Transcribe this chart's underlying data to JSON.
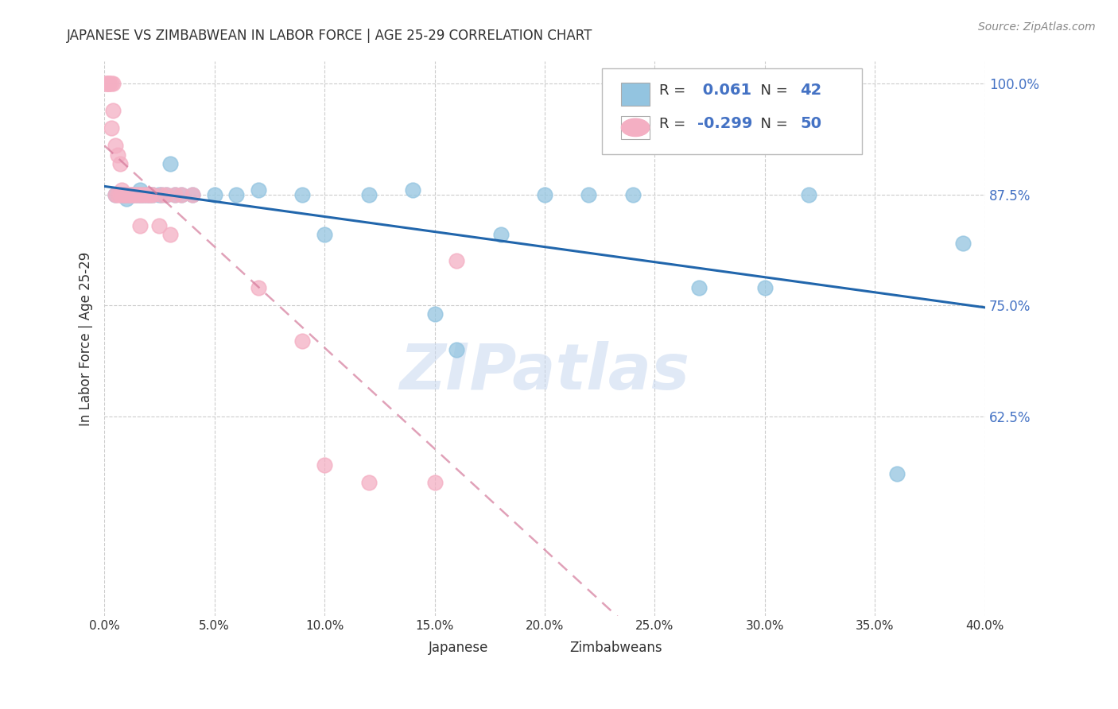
{
  "title": "JAPANESE VS ZIMBABWEAN IN LABOR FORCE | AGE 25-29 CORRELATION CHART",
  "source": "Source: ZipAtlas.com",
  "ylabel": "In Labor Force | Age 25-29",
  "xlim": [
    0.0,
    0.4
  ],
  "ylim": [
    0.4,
    1.025
  ],
  "yticks": [
    1.0,
    0.875,
    0.75,
    0.625
  ],
  "xticks": [
    0.0,
    0.05,
    0.1,
    0.15,
    0.2,
    0.25,
    0.3,
    0.35,
    0.4
  ],
  "japanese_x": [
    0.005,
    0.008,
    0.009,
    0.01,
    0.01,
    0.012,
    0.013,
    0.014,
    0.015,
    0.016,
    0.016,
    0.017,
    0.018,
    0.019,
    0.02,
    0.021,
    0.022,
    0.025,
    0.026,
    0.028,
    0.03,
    0.032,
    0.035,
    0.04,
    0.05,
    0.06,
    0.07,
    0.09,
    0.1,
    0.12,
    0.14,
    0.15,
    0.16,
    0.18,
    0.2,
    0.22,
    0.24,
    0.27,
    0.3,
    0.32,
    0.36,
    0.39
  ],
  "japanese_y": [
    0.875,
    0.875,
    0.875,
    0.87,
    0.875,
    0.875,
    0.875,
    0.875,
    0.875,
    0.875,
    0.88,
    0.875,
    0.875,
    0.875,
    0.875,
    0.875,
    0.875,
    0.875,
    0.875,
    0.875,
    0.91,
    0.875,
    0.875,
    0.875,
    0.875,
    0.875,
    0.88,
    0.875,
    0.83,
    0.875,
    0.88,
    0.74,
    0.7,
    0.83,
    0.875,
    0.875,
    0.875,
    0.77,
    0.77,
    0.875,
    0.56,
    0.82
  ],
  "zimbabwean_x": [
    0.001,
    0.001,
    0.001,
    0.002,
    0.002,
    0.002,
    0.003,
    0.003,
    0.004,
    0.004,
    0.005,
    0.005,
    0.006,
    0.006,
    0.007,
    0.007,
    0.008,
    0.008,
    0.009,
    0.009,
    0.01,
    0.01,
    0.011,
    0.012,
    0.012,
    0.013,
    0.013,
    0.014,
    0.015,
    0.016,
    0.016,
    0.017,
    0.018,
    0.019,
    0.02,
    0.021,
    0.022,
    0.025,
    0.026,
    0.028,
    0.03,
    0.032,
    0.035,
    0.04,
    0.07,
    0.09,
    0.1,
    0.12,
    0.15,
    0.16
  ],
  "zimbabwean_y": [
    1.0,
    1.0,
    1.0,
    1.0,
    1.0,
    1.0,
    1.0,
    0.95,
    1.0,
    0.97,
    0.875,
    0.93,
    0.875,
    0.92,
    0.875,
    0.91,
    0.875,
    0.88,
    0.875,
    0.875,
    0.875,
    0.875,
    0.875,
    0.875,
    0.875,
    0.875,
    0.875,
    0.875,
    0.875,
    0.875,
    0.84,
    0.875,
    0.875,
    0.875,
    0.875,
    0.875,
    0.875,
    0.84,
    0.875,
    0.875,
    0.83,
    0.875,
    0.875,
    0.875,
    0.77,
    0.71,
    0.57,
    0.55,
    0.55,
    0.8
  ],
  "japanese_R": 0.061,
  "japanese_N": 42,
  "zimbabwean_R": -0.299,
  "zimbabwean_N": 50,
  "blue_scatter_color": "#93c4e0",
  "pink_scatter_color": "#f4afc3",
  "blue_line_color": "#2166ac",
  "pink_line_color": "#d4799a",
  "watermark_color": "#c8d8f0",
  "right_axis_color": "#4472c4",
  "title_color": "#333333",
  "source_color": "#888888",
  "grid_color": "#cccccc",
  "legend_text_color": "#333333",
  "legend_value_color": "#4472c4"
}
